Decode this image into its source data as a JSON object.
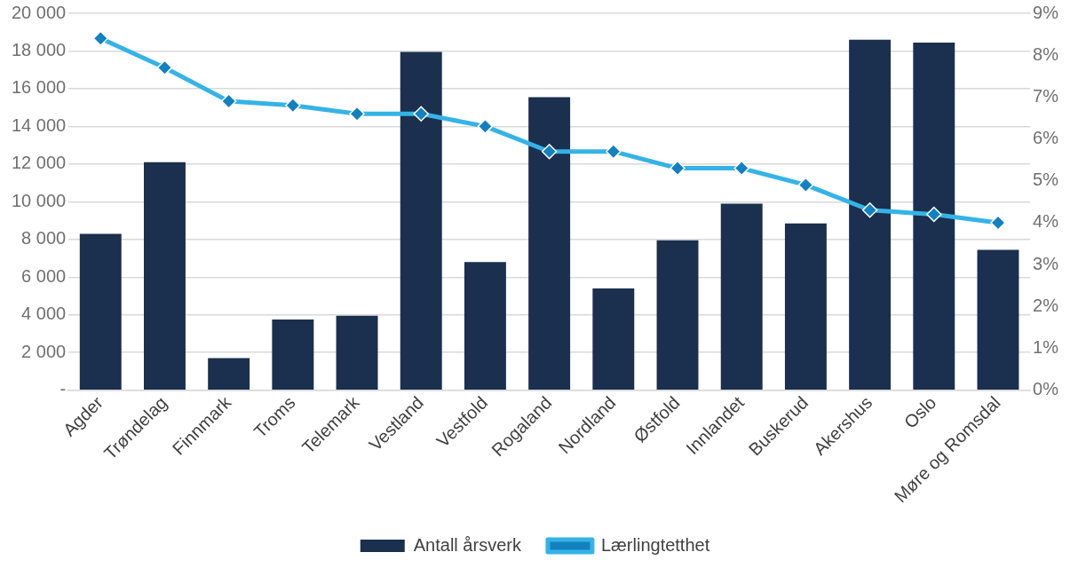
{
  "chart_data": {
    "type": "bar",
    "categories": [
      "Agder",
      "Trøndelag",
      "Finnmark",
      "Troms",
      "Telemark",
      "Vestland",
      "Vestfold",
      "Rogaland",
      "Nordland",
      "Østfold",
      "Innlandet",
      "Buskerud",
      "Akershus",
      "Oslo",
      "Møre og Romsdal"
    ],
    "series": [
      {
        "name": "Antall årsverk",
        "color": "#1b2f4e",
        "values": [
          8300,
          12100,
          1700,
          3750,
          3950,
          17950,
          6800,
          15550,
          5400,
          7950,
          9900,
          8850,
          18600,
          18450,
          7450
        ]
      },
      {
        "name": "Lærlingtetthet",
        "type": "line",
        "axis": "y2",
        "color": "#35b3e6",
        "marker": "diamond",
        "values": [
          8.4,
          7.7,
          6.9,
          6.8,
          6.6,
          6.6,
          6.3,
          5.7,
          5.7,
          5.3,
          5.3,
          4.9,
          4.3,
          4.2,
          4.0
        ]
      }
    ],
    "ylim": [
      0,
      20000
    ],
    "yticks": [
      {
        "value": 0,
        "label": "-"
      },
      {
        "value": 2000,
        "label": "2 000"
      },
      {
        "value": 4000,
        "label": "4 000"
      },
      {
        "value": 6000,
        "label": "6 000"
      },
      {
        "value": 8000,
        "label": "8 000"
      },
      {
        "value": 10000,
        "label": "10 000"
      },
      {
        "value": 12000,
        "label": "12 000"
      },
      {
        "value": 14000,
        "label": "14 000"
      },
      {
        "value": 16000,
        "label": "16 000"
      },
      {
        "value": 18000,
        "label": "18 000"
      },
      {
        "value": 20000,
        "label": "20 000"
      }
    ],
    "y2lim": [
      0,
      9
    ],
    "y2ticks": [
      {
        "value": 0,
        "label": "0%"
      },
      {
        "value": 1,
        "label": "1%"
      },
      {
        "value": 2,
        "label": "2%"
      },
      {
        "value": 3,
        "label": "3%"
      },
      {
        "value": 4,
        "label": "4%"
      },
      {
        "value": 5,
        "label": "5%"
      },
      {
        "value": 6,
        "label": "6%"
      },
      {
        "value": 7,
        "label": "7%"
      },
      {
        "value": 8,
        "label": "8%"
      },
      {
        "value": 9,
        "label": "9%"
      }
    ],
    "grid": "y",
    "legend": "bottom"
  }
}
